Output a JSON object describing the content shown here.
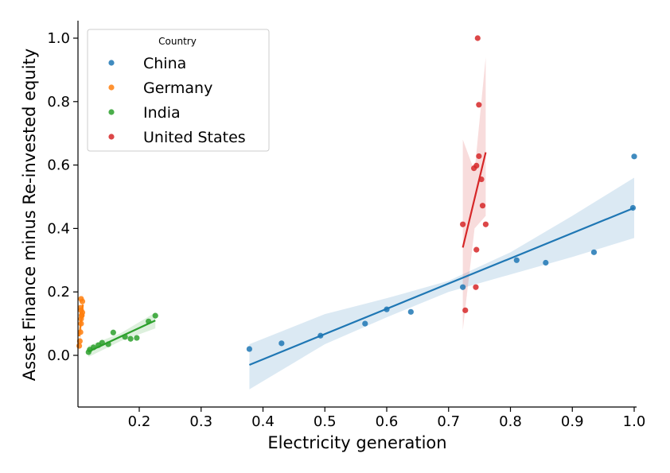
{
  "chart_data": {
    "type": "scatter",
    "xlabel": "Electricity generation",
    "ylabel": "Asset Finance minus Re-invested equity",
    "xlim": [
      0.1,
      1.0
    ],
    "ylim": [
      -0.16,
      1.06
    ],
    "xticks": [
      0.2,
      0.3,
      0.4,
      0.5,
      0.6,
      0.7,
      0.8,
      0.9,
      1.0
    ],
    "xtick_labels": [
      "0.2",
      "0.3",
      "0.4",
      "0.5",
      "0.6",
      "0.7",
      "0.8",
      "0.9",
      "1.0"
    ],
    "yticks": [
      0.0,
      0.2,
      0.4,
      0.6,
      0.8,
      1.0
    ],
    "ytick_labels": [
      "0.0",
      "0.2",
      "0.4",
      "0.6",
      "0.8",
      "1.0"
    ],
    "grid": false,
    "legend": {
      "title": "Country",
      "placement": "upper-left"
    },
    "series": [
      {
        "name": "China",
        "color": "#1f77b4",
        "points": [
          [
            0.378,
            0.02
          ],
          [
            0.43,
            0.038
          ],
          [
            0.493,
            0.062
          ],
          [
            0.565,
            0.1
          ],
          [
            0.6,
            0.145
          ],
          [
            0.639,
            0.137
          ],
          [
            0.723,
            0.215
          ],
          [
            0.81,
            0.3
          ],
          [
            0.857,
            0.292
          ],
          [
            0.935,
            0.325
          ],
          [
            0.998,
            0.465
          ],
          [
            1.0,
            0.627
          ]
        ],
        "fit": {
          "x": [
            0.378,
            1.0
          ],
          "y": [
            -0.03,
            0.465
          ]
        },
        "band": {
          "x": [
            0.378,
            0.5,
            0.6,
            0.7,
            0.8,
            0.9,
            1.0
          ],
          "lower": [
            -0.107,
            0.035,
            0.12,
            0.2,
            0.255,
            0.31,
            0.37
          ],
          "upper": [
            0.035,
            0.13,
            0.18,
            0.235,
            0.325,
            0.44,
            0.56
          ]
        }
      },
      {
        "name": "Germany",
        "color": "#ff7f0e",
        "points": [
          [
            0.103,
            0.03
          ],
          [
            0.104,
            0.045
          ],
          [
            0.105,
            0.073
          ],
          [
            0.106,
            0.1
          ],
          [
            0.106,
            0.115
          ],
          [
            0.107,
            0.127
          ],
          [
            0.108,
            0.135
          ],
          [
            0.106,
            0.142
          ],
          [
            0.105,
            0.15
          ],
          [
            0.106,
            0.178
          ],
          [
            0.108,
            0.17
          ],
          [
            0.107,
            0.125
          ]
        ],
        "fit": {
          "x": [
            0.103,
            0.109
          ],
          "y": [
            0.06,
            0.16
          ]
        },
        "band": {
          "x": [
            0.103,
            0.109
          ],
          "lower": [
            0.0,
            0.12
          ],
          "upper": [
            0.11,
            0.2
          ]
        }
      },
      {
        "name": "India",
        "color": "#2ca02c",
        "points": [
          [
            0.118,
            0.01
          ],
          [
            0.12,
            0.018
          ],
          [
            0.126,
            0.025
          ],
          [
            0.134,
            0.032
          ],
          [
            0.14,
            0.04
          ],
          [
            0.15,
            0.035
          ],
          [
            0.158,
            0.072
          ],
          [
            0.177,
            0.058
          ],
          [
            0.186,
            0.052
          ],
          [
            0.196,
            0.055
          ],
          [
            0.215,
            0.107
          ],
          [
            0.226,
            0.125
          ]
        ],
        "fit": {
          "x": [
            0.118,
            0.226
          ],
          "y": [
            0.012,
            0.11
          ]
        },
        "band": {
          "x": [
            0.118,
            0.17,
            0.226
          ],
          "lower": [
            -0.005,
            0.045,
            0.085
          ],
          "upper": [
            0.03,
            0.07,
            0.135
          ]
        }
      },
      {
        "name": "United States",
        "color": "#d62728",
        "points": [
          [
            0.747,
            1.0
          ],
          [
            0.749,
            0.79
          ],
          [
            0.749,
            0.628
          ],
          [
            0.745,
            0.598
          ],
          [
            0.741,
            0.59
          ],
          [
            0.753,
            0.555
          ],
          [
            0.755,
            0.472
          ],
          [
            0.723,
            0.413
          ],
          [
            0.76,
            0.413
          ],
          [
            0.745,
            0.333
          ],
          [
            0.744,
            0.215
          ],
          [
            0.727,
            0.142
          ]
        ],
        "fit": {
          "x": [
            0.723,
            0.76
          ],
          "y": [
            0.34,
            0.64
          ]
        },
        "band": {
          "x": [
            0.723,
            0.742,
            0.76
          ],
          "lower": [
            0.08,
            0.4,
            0.44
          ],
          "upper": [
            0.68,
            0.58,
            0.94
          ]
        }
      }
    ]
  }
}
